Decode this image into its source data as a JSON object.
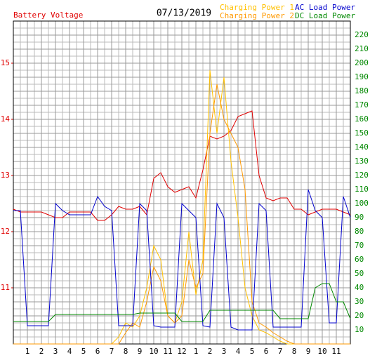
{
  "chart_data": {
    "type": "line",
    "title": "07/13/2019",
    "y_label": "Battery Voltage",
    "x": [
      0,
      0.5,
      1,
      1.5,
      2,
      2.5,
      3,
      3.5,
      4,
      4.5,
      5,
      5.5,
      6,
      6.5,
      7,
      7.5,
      8,
      8.5,
      9,
      9.5,
      10,
      10.5,
      11,
      11.5,
      12,
      12.5,
      13,
      13.5,
      14,
      14.5,
      15,
      15.5,
      16,
      16.5,
      17,
      17.5,
      18,
      18.5,
      19,
      19.5,
      20,
      20.5,
      21,
      21.5,
      22,
      22.5,
      23,
      23.5,
      24
    ],
    "xlim": [
      0,
      24
    ],
    "xticks": [
      1,
      2,
      3,
      4,
      5,
      6,
      7,
      8,
      9,
      10,
      11,
      12,
      {
        "value": 13,
        "label": "1"
      },
      {
        "value": 14,
        "label": "2"
      },
      {
        "value": 15,
        "label": "3"
      },
      {
        "value": 16,
        "label": "4"
      },
      {
        "value": 17,
        "label": "5"
      },
      {
        "value": 18,
        "label": "6"
      },
      {
        "value": 19,
        "label": "7"
      },
      {
        "value": 20,
        "label": "8"
      },
      {
        "value": 21,
        "label": "9"
      },
      {
        "value": 22,
        "label": "10"
      },
      {
        "value": 23,
        "label": "11"
      }
    ],
    "ylim": [
      10,
      15.75
    ],
    "yticks": [
      11,
      12,
      13,
      14,
      15
    ],
    "y2lim": [
      0,
      230
    ],
    "y2ticks": [
      10,
      20,
      30,
      40,
      50,
      60,
      70,
      80,
      90,
      100,
      110,
      120,
      130,
      140,
      150,
      160,
      170,
      180,
      190,
      200,
      210,
      220
    ],
    "grid": true,
    "series": [
      {
        "name": "Battery Voltage",
        "color": "#e00000",
        "axis": "y",
        "values": [
          12.4,
          12.35,
          12.35,
          12.35,
          12.35,
          12.3,
          12.25,
          12.25,
          12.35,
          12.35,
          12.35,
          12.35,
          12.2,
          12.2,
          12.3,
          12.45,
          12.4,
          12.4,
          12.45,
          12.3,
          12.95,
          13.05,
          12.8,
          12.7,
          12.75,
          12.8,
          12.6,
          13.1,
          13.7,
          13.65,
          13.7,
          13.8,
          14.05,
          14.1,
          14.15,
          13.0,
          12.6,
          12.55,
          12.6,
          12.6,
          12.4,
          12.4,
          12.3,
          12.35,
          12.4,
          12.4,
          12.4,
          12.35,
          12.3
        ]
      },
      {
        "name": "Charging Power 1",
        "color": "#ffc000",
        "axis": "y2",
        "values": [
          0,
          0,
          0,
          0,
          0,
          0,
          0,
          0,
          0,
          0,
          0,
          0,
          0,
          0,
          0,
          5,
          15,
          12,
          20,
          40,
          70,
          60,
          20,
          15,
          30,
          80,
          35,
          60,
          195,
          150,
          190,
          130,
          90,
          40,
          20,
          10,
          8,
          5,
          2,
          0,
          0,
          0,
          0,
          0,
          0,
          0,
          0,
          0,
          0
        ]
      },
      {
        "name": "Charging Power 2",
        "color": "#ff9900",
        "axis": "y2",
        "values": [
          0,
          0,
          0,
          0,
          0,
          0,
          0,
          0,
          0,
          0,
          0,
          0,
          0,
          0,
          0,
          0,
          8,
          15,
          12,
          30,
          55,
          45,
          20,
          15,
          20,
          60,
          40,
          50,
          150,
          185,
          160,
          150,
          140,
          110,
          30,
          15,
          12,
          8,
          5,
          2,
          0,
          0,
          0,
          0,
          0,
          0,
          0,
          0,
          0
        ]
      },
      {
        "name": "AC Load Power",
        "color": "#0000cc",
        "axis": "y2",
        "values": [
          95,
          95,
          13,
          13,
          13,
          13,
          100,
          95,
          92,
          92,
          92,
          92,
          105,
          98,
          95,
          13,
          13,
          13,
          100,
          95,
          13,
          12,
          12,
          12,
          100,
          95,
          90,
          13,
          12,
          100,
          90,
          12,
          10,
          10,
          10,
          100,
          95,
          12,
          12,
          12,
          12,
          12,
          110,
          95,
          90,
          15,
          15,
          105,
          90
        ]
      },
      {
        "name": "DC Load Power",
        "color": "#008800",
        "axis": "y2",
        "values": [
          16,
          16,
          16,
          16,
          16,
          16,
          21,
          21,
          21,
          21,
          21,
          21,
          21,
          21,
          21,
          21,
          21,
          21,
          22,
          22,
          22,
          22,
          22,
          22,
          16,
          16,
          16,
          16,
          24,
          24,
          24,
          24,
          24,
          24,
          24,
          24,
          24,
          24,
          18,
          18,
          18,
          18,
          18,
          40,
          43,
          43,
          30,
          30,
          18
        ]
      }
    ]
  }
}
